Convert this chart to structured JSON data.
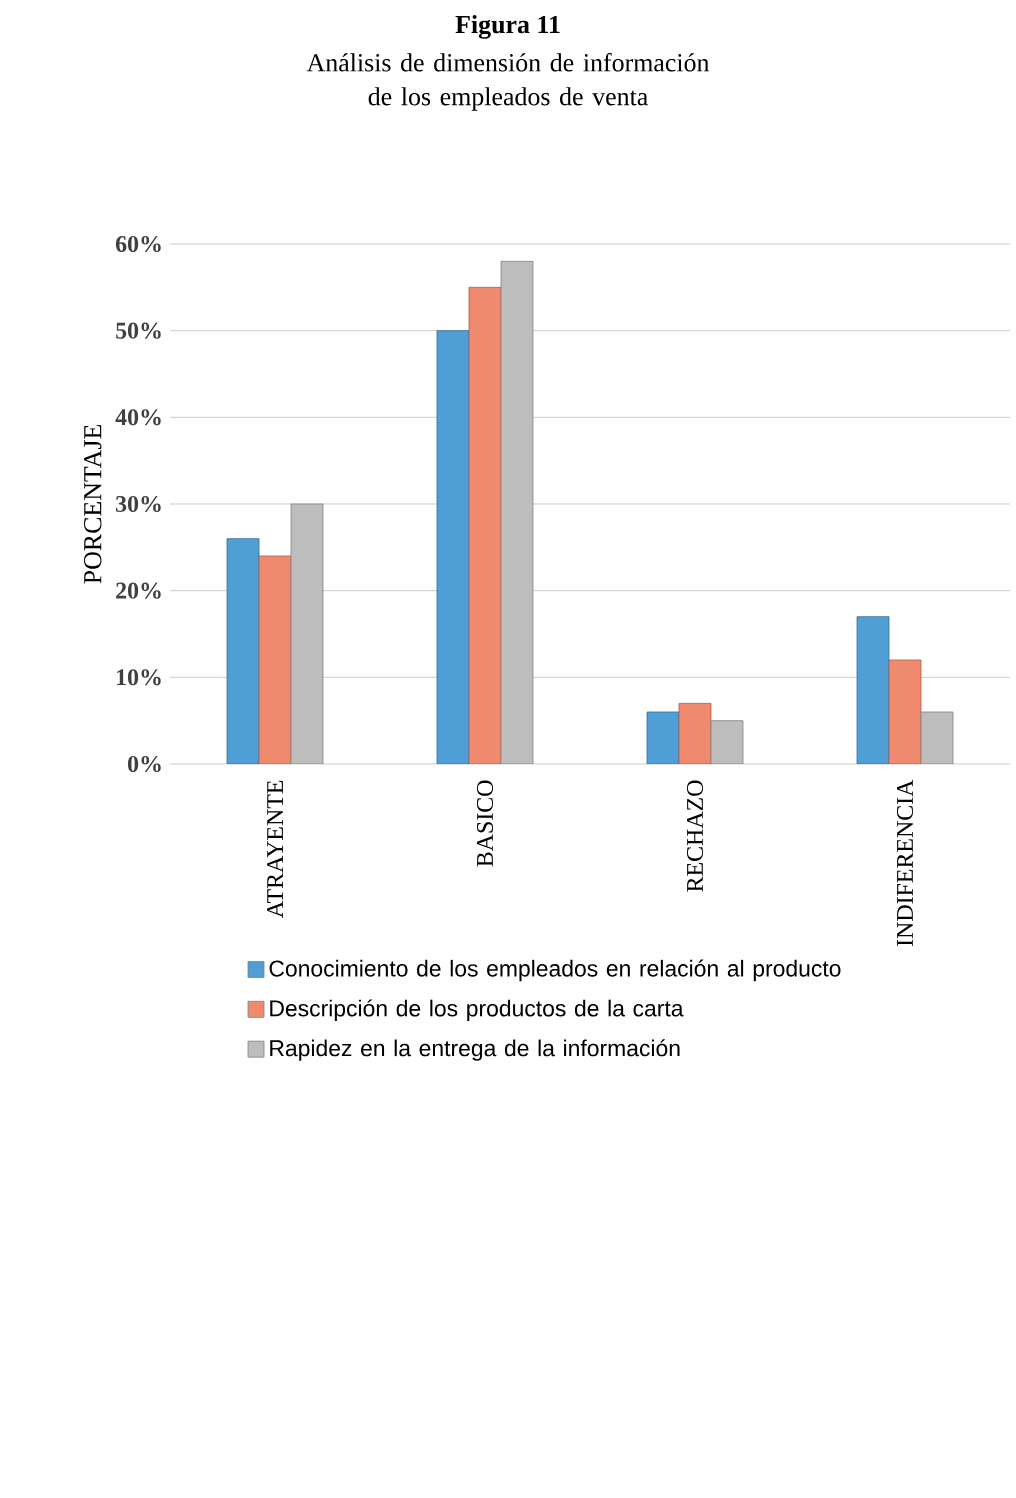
{
  "chart_data": {
    "type": "bar",
    "title": "Figura 11",
    "subtitle": "Análisis de dimensión de información de los empleados de venta",
    "ylabel": "PORCENTAJE",
    "categories": [
      "ATRAYENTE",
      "BASICO",
      "RECHAZO",
      "INDIFERENCIA"
    ],
    "series": [
      {
        "name": "Conocimiento de los empleados en relación al producto",
        "color": "#4f9fd6",
        "values": [
          26,
          50,
          6,
          17
        ]
      },
      {
        "name": "Descripción de los productos de  la carta",
        "color": "#ef8a6e",
        "values": [
          24,
          55,
          7,
          12
        ]
      },
      {
        "name": "Rapidez en la entrega de la información",
        "color": "#bdbdbd",
        "values": [
          30,
          58,
          5,
          6
        ]
      }
    ],
    "ylim": [
      0,
      60
    ],
    "yticks": [
      {
        "value": 0,
        "label": "0%"
      },
      {
        "value": 10,
        "label": "10%"
      },
      {
        "value": 20,
        "label": "20%"
      },
      {
        "value": 30,
        "label": "30%"
      },
      {
        "value": 40,
        "label": "40%"
      },
      {
        "value": 50,
        "label": "50%"
      },
      {
        "value": 60,
        "label": "60%"
      }
    ],
    "grid": "y",
    "legend": "bottom"
  }
}
